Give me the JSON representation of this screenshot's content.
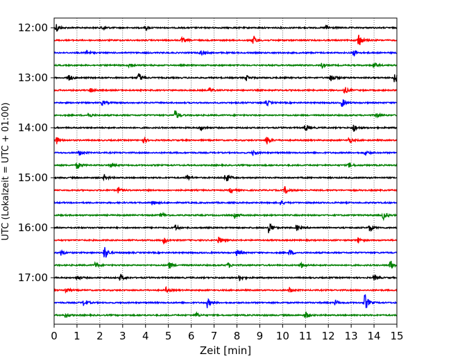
{
  "chart_data": {
    "type": "line",
    "title": "",
    "xlabel": "Zeit  [min]",
    "ylabel": "UTC (Lokalzeit = UTC + 01:00)",
    "xlim": [
      0,
      15
    ],
    "x_ticks": [
      "0",
      "1",
      "2",
      "3",
      "4",
      "5",
      "6",
      "7",
      "8",
      "9",
      "10",
      "11",
      "12",
      "13",
      "14",
      "15"
    ],
    "y_ticks": [
      "12:00",
      "13:00",
      "14:00",
      "15:00",
      "16:00",
      "17:00"
    ],
    "y_tick_hours": [
      0,
      1,
      2,
      3,
      4,
      5
    ],
    "trace_interval_min": 15,
    "start_time": "12:00",
    "grid_x": true,
    "trace_colors": [
      "#000000",
      "#ff0000",
      "#0000ff",
      "#008000"
    ],
    "traces": [
      {
        "start": "12:00",
        "color": "#000000",
        "events": [
          [
            0.1,
            0.5
          ],
          [
            2.1,
            0.3
          ],
          [
            4.0,
            0.25
          ],
          [
            11.9,
            0.3
          ]
        ]
      },
      {
        "start": "12:15",
        "color": "#ff0000",
        "events": [
          [
            8.7,
            0.6
          ],
          [
            13.3,
            0.9
          ],
          [
            5.6,
            0.3
          ]
        ]
      },
      {
        "start": "12:30",
        "color": "#0000ff",
        "events": [
          [
            1.4,
            0.3
          ],
          [
            6.4,
            0.3
          ],
          [
            13.1,
            0.35
          ]
        ]
      },
      {
        "start": "12:45",
        "color": "#008000",
        "events": [
          [
            3.3,
            0.35
          ],
          [
            11.7,
            0.3
          ],
          [
            14.0,
            0.3
          ]
        ]
      },
      {
        "start": "13:00",
        "color": "#000000",
        "events": [
          [
            0.6,
            0.5
          ],
          [
            3.7,
            0.55
          ],
          [
            12.1,
            0.55
          ],
          [
            14.9,
            0.6
          ],
          [
            8.4,
            0.3
          ]
        ]
      },
      {
        "start": "13:15",
        "color": "#ff0000",
        "events": [
          [
            1.6,
            0.3
          ],
          [
            6.8,
            0.3
          ],
          [
            12.7,
            0.4
          ]
        ]
      },
      {
        "start": "13:30",
        "color": "#0000ff",
        "events": [
          [
            2.1,
            0.3
          ],
          [
            12.6,
            0.45
          ],
          [
            9.3,
            0.3
          ]
        ]
      },
      {
        "start": "13:45",
        "color": "#008000",
        "events": [
          [
            5.3,
            0.6
          ],
          [
            1.5,
            0.3
          ],
          [
            14.1,
            0.3
          ]
        ]
      },
      {
        "start": "14:00",
        "color": "#000000",
        "events": [
          [
            11.0,
            0.45
          ],
          [
            13.1,
            0.45
          ],
          [
            6.4,
            0.3
          ]
        ]
      },
      {
        "start": "14:15",
        "color": "#ff0000",
        "events": [
          [
            0.1,
            0.4
          ],
          [
            9.3,
            0.55
          ],
          [
            3.9,
            0.3
          ],
          [
            12.9,
            0.35
          ]
        ]
      },
      {
        "start": "14:30",
        "color": "#0000ff",
        "events": [
          [
            1.1,
            0.3
          ],
          [
            8.7,
            0.3
          ],
          [
            13.6,
            0.3
          ]
        ]
      },
      {
        "start": "14:45",
        "color": "#008000",
        "events": [
          [
            1.0,
            0.45
          ],
          [
            2.5,
            0.3
          ],
          [
            12.9,
            0.3
          ]
        ]
      },
      {
        "start": "15:00",
        "color": "#000000",
        "events": [
          [
            7.5,
            0.65
          ],
          [
            2.2,
            0.3
          ],
          [
            5.8,
            0.35
          ]
        ]
      },
      {
        "start": "15:15",
        "color": "#ff0000",
        "events": [
          [
            2.8,
            0.35
          ],
          [
            10.1,
            0.4
          ],
          [
            7.7,
            0.3
          ]
        ]
      },
      {
        "start": "15:30",
        "color": "#0000ff",
        "events": [
          [
            4.3,
            0.3
          ],
          [
            9.9,
            0.3
          ]
        ]
      },
      {
        "start": "15:45",
        "color": "#008000",
        "events": [
          [
            14.4,
            0.45
          ],
          [
            4.7,
            0.3
          ],
          [
            7.9,
            0.3
          ]
        ]
      },
      {
        "start": "16:00",
        "color": "#000000",
        "events": [
          [
            9.4,
            0.7
          ],
          [
            13.8,
            0.5
          ],
          [
            5.3,
            0.3
          ],
          [
            10.6,
            0.3
          ]
        ]
      },
      {
        "start": "16:15",
        "color": "#ff0000",
        "events": [
          [
            4.8,
            0.35
          ],
          [
            7.2,
            0.35
          ],
          [
            13.3,
            0.3
          ]
        ]
      },
      {
        "start": "16:30",
        "color": "#0000ff",
        "events": [
          [
            2.2,
            0.8
          ],
          [
            8.0,
            0.4
          ],
          [
            10.3,
            0.35
          ],
          [
            0.3,
            0.3
          ]
        ]
      },
      {
        "start": "16:45",
        "color": "#008000",
        "events": [
          [
            5.0,
            0.5
          ],
          [
            14.7,
            0.6
          ],
          [
            1.8,
            0.3
          ],
          [
            7.6,
            0.3
          ],
          [
            10.8,
            0.3
          ]
        ]
      },
      {
        "start": "17:00",
        "color": "#000000",
        "events": [
          [
            2.9,
            0.4
          ],
          [
            1.0,
            0.3
          ],
          [
            8.1,
            0.3
          ],
          [
            14.0,
            0.3
          ]
        ]
      },
      {
        "start": "17:15",
        "color": "#ff0000",
        "events": [
          [
            0.5,
            0.35
          ],
          [
            4.9,
            0.3
          ],
          [
            10.3,
            0.3
          ]
        ]
      },
      {
        "start": "17:30",
        "color": "#0000ff",
        "events": [
          [
            13.6,
            1.0
          ],
          [
            6.7,
            0.5
          ],
          [
            1.3,
            0.45
          ],
          [
            12.3,
            0.3
          ]
        ]
      },
      {
        "start": "17:45",
        "color": "#008000",
        "events": [
          [
            11.0,
            0.45
          ],
          [
            0.5,
            0.3
          ],
          [
            6.2,
            0.3
          ]
        ]
      }
    ]
  }
}
